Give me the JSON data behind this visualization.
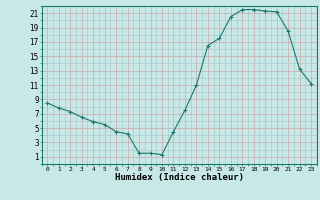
{
  "x": [
    0,
    1,
    2,
    3,
    4,
    5,
    6,
    7,
    8,
    9,
    10,
    11,
    12,
    13,
    14,
    15,
    16,
    17,
    18,
    19,
    20,
    21,
    22,
    23
  ],
  "y": [
    8.5,
    7.8,
    7.3,
    6.5,
    5.9,
    5.5,
    4.5,
    4.2,
    1.5,
    1.5,
    1.3,
    4.5,
    7.5,
    11.0,
    16.5,
    17.5,
    20.5,
    21.5,
    21.5,
    21.3,
    21.2,
    18.5,
    13.2,
    11.2
  ],
  "line_color": "#1a7a6a",
  "marker": "+",
  "bg_color": "#c8e8e8",
  "minor_grid_color": "#a8cccc",
  "major_grid_color": "#c8a8a8",
  "xlabel": "Humidex (Indice chaleur)",
  "ylabel_ticks": [
    1,
    3,
    5,
    7,
    9,
    11,
    13,
    15,
    17,
    19,
    21
  ],
  "xticks": [
    0,
    1,
    2,
    3,
    4,
    5,
    6,
    7,
    8,
    9,
    10,
    11,
    12,
    13,
    14,
    15,
    16,
    17,
    18,
    19,
    20,
    21,
    22,
    23
  ],
  "ylim": [
    0,
    22
  ],
  "xlim": [
    -0.5,
    23.5
  ]
}
